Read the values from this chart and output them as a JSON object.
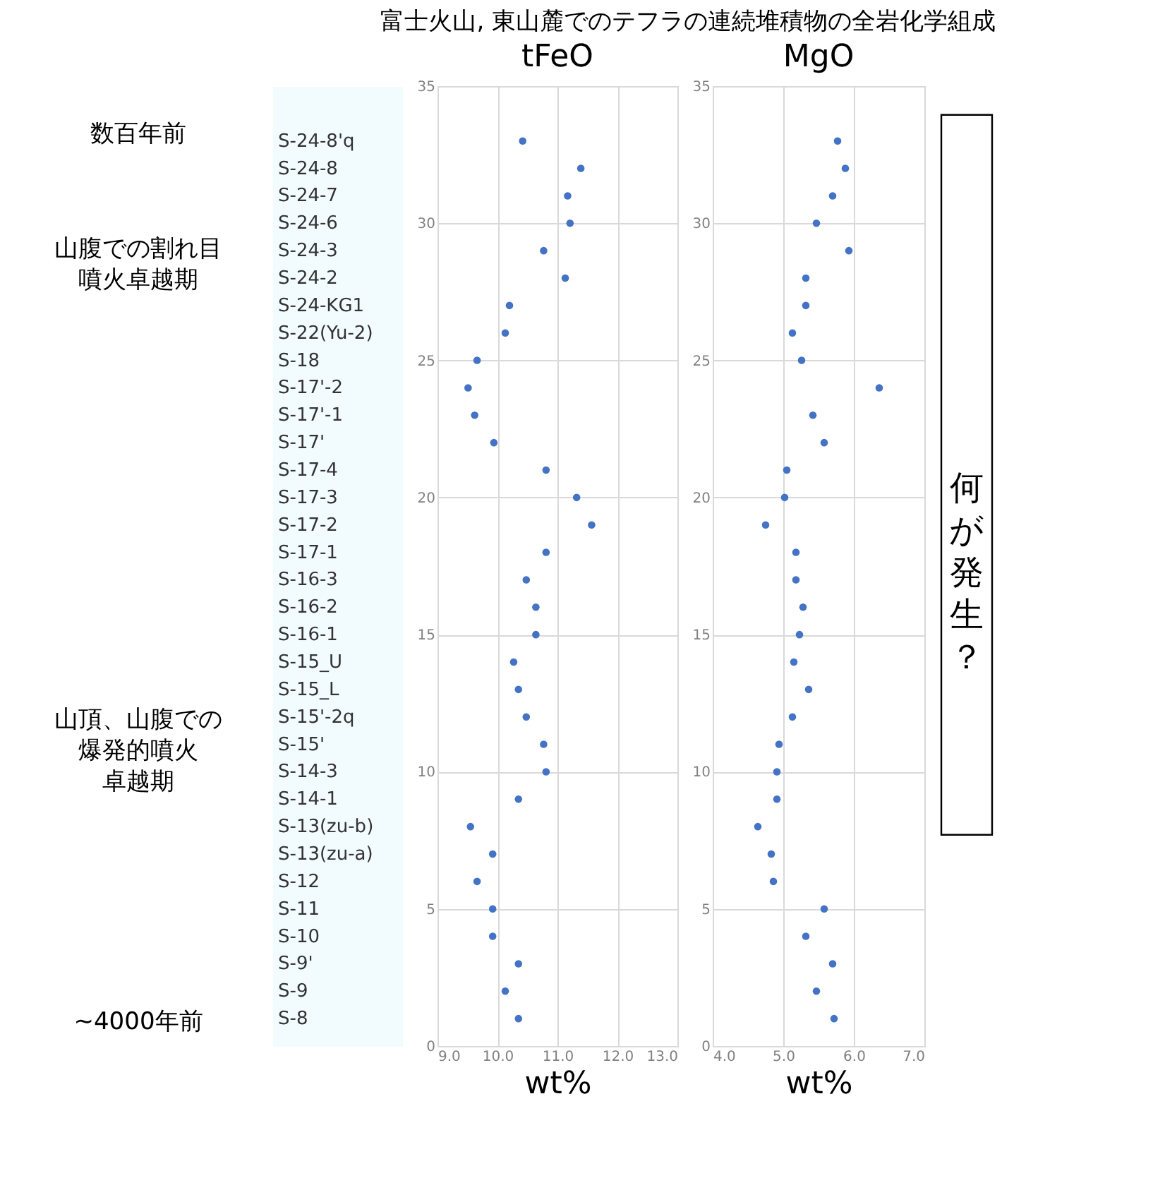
{
  "chart_data": [
    {
      "type": "scatter",
      "title": "tFeO",
      "xlabel": "wt%",
      "marker": "circle",
      "grid": true,
      "color": "#4472c4",
      "x": [
        10.42,
        11.39,
        11.17,
        11.21,
        10.77,
        11.13,
        10.2,
        10.13,
        9.66,
        9.51,
        9.62,
        9.94,
        10.81,
        11.32,
        11.57,
        10.81,
        10.48,
        10.64,
        10.64,
        10.27,
        10.35,
        10.48,
        10.77,
        10.81,
        10.35,
        9.55,
        9.92,
        9.66,
        9.92,
        9.92,
        10.35,
        10.13,
        10.35
      ],
      "values": [
        33,
        32,
        31,
        30,
        29,
        28,
        27,
        26,
        25,
        24,
        23,
        22,
        21,
        20,
        19,
        18,
        17,
        16,
        15,
        14,
        13,
        12,
        11,
        10,
        9,
        8,
        7,
        6,
        5,
        4,
        3,
        2,
        1
      ],
      "xlim": [
        9,
        13
      ],
      "xticks": [
        {
          "value": 9,
          "label": "9.0"
        },
        {
          "value": 10,
          "label": "10.0"
        },
        {
          "value": 11,
          "label": "11.0"
        },
        {
          "value": 12,
          "label": "12.0"
        },
        {
          "value": 13,
          "label": "13.0"
        }
      ],
      "ylim": [
        0,
        35
      ],
      "yticks": [
        0,
        5,
        10,
        15,
        20,
        25,
        30,
        35
      ],
      "annotations": [
        "富士火山, 東山麓でのテフラの連続堆積物の全岩化学組成",
        "数百年前",
        "山腹での割れ目噴火卓越期",
        "山頂、山腹での爆発的噴火卓越期",
        "~4000年前",
        "S-24-8'q",
        "S-24-8",
        "S-24-7",
        "S-24-6",
        "S-24-3",
        "S-24-2",
        "S-24-KG1",
        "S-22(Yu-2)",
        "S-18",
        "S-17'-2",
        "S-17'-1",
        "S-17'",
        "S-17-4",
        "S-17-3",
        "S-17-2",
        "S-17-1",
        "S-16-3",
        "S-16-2",
        "S-16-1",
        "S-15_U",
        "S-15_L",
        "S-15'-2q",
        "S-15'",
        "S-14-3",
        "S-14-1",
        "S-13(zu-b)",
        "S-13(zu-a)",
        "S-12",
        "S-11",
        "S-10",
        "S-9'",
        "S-9",
        "S-8"
      ]
    },
    {
      "type": "scatter",
      "title": "MgO",
      "xlabel": "wt%",
      "marker": "circle",
      "grid": true,
      "color": "#4472c4",
      "x": [
        5.77,
        5.88,
        5.7,
        5.47,
        5.93,
        5.32,
        5.32,
        5.13,
        5.26,
        6.36,
        5.42,
        5.58,
        5.05,
        5.02,
        4.75,
        5.18,
        5.18,
        5.28,
        5.23,
        5.15,
        5.36,
        5.13,
        4.94,
        4.91,
        4.91,
        4.64,
        4.83,
        4.86,
        5.58,
        5.32,
        5.7,
        5.47,
        5.72
      ],
      "values": [
        33,
        32,
        31,
        30,
        29,
        28,
        27,
        26,
        25,
        24,
        23,
        22,
        21,
        20,
        19,
        18,
        17,
        16,
        15,
        14,
        13,
        12,
        11,
        10,
        9,
        8,
        7,
        6,
        5,
        4,
        3,
        2,
        1
      ],
      "xlim": [
        4,
        7
      ],
      "xticks": [
        {
          "value": 4,
          "label": "4.0"
        },
        {
          "value": 5,
          "label": "5.0"
        },
        {
          "value": 6,
          "label": "6.0"
        },
        {
          "value": 7,
          "label": "7.0"
        }
      ],
      "ylim": [
        0,
        35
      ],
      "yticks": [
        0,
        5,
        10,
        15,
        20,
        25,
        30,
        35
      ],
      "annotations": [
        "何が発生？"
      ]
    }
  ]
}
